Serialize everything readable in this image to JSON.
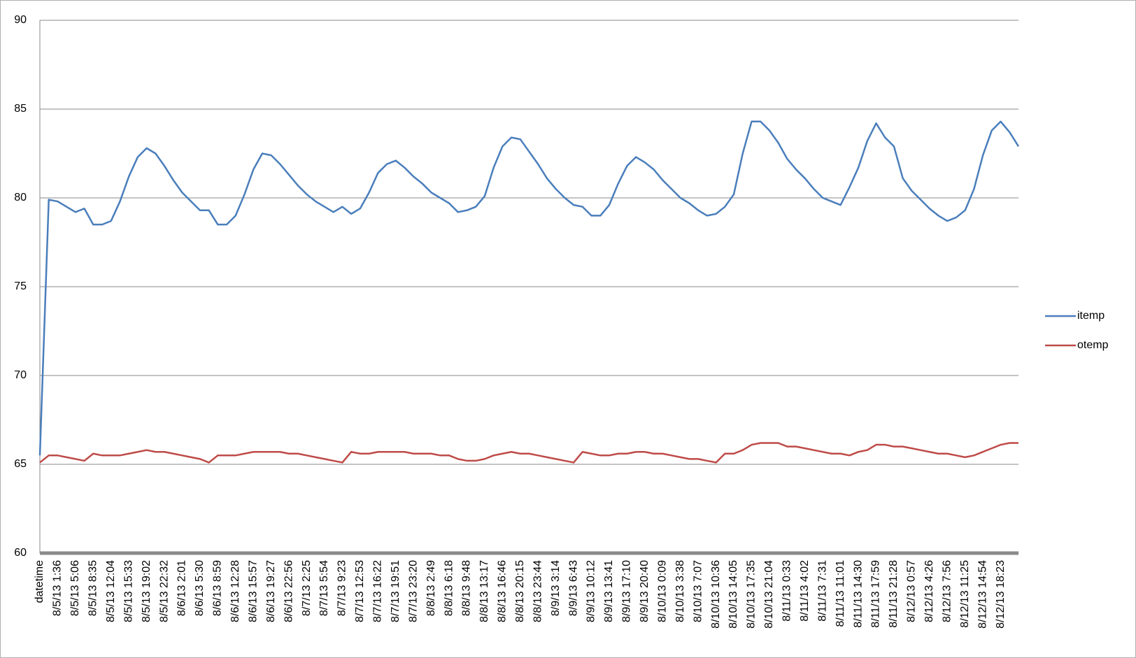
{
  "chart_data": {
    "type": "line",
    "categories": [
      "datetime",
      null,
      "8/5/13 1:36",
      null,
      "8/5/13 5:06",
      null,
      "8/5/13 8:35",
      null,
      "8/5/13 12:04",
      null,
      "8/5/13 15:33",
      null,
      "8/5/13 19:02",
      null,
      "8/5/13 22:32",
      null,
      "8/6/13 2:01",
      null,
      "8/6/13 5:30",
      null,
      "8/6/13 8:59",
      null,
      "8/6/13 12:28",
      null,
      "8/6/13 15:57",
      null,
      "8/6/13 19:27",
      null,
      "8/6/13 22:56",
      null,
      "8/7/13 2:25",
      null,
      "8/7/13 5:54",
      null,
      "8/7/13 9:23",
      null,
      "8/7/13 12:53",
      null,
      "8/7/13 16:22",
      null,
      "8/7/13 19:51",
      null,
      "8/7/13 23:20",
      null,
      "8/8/13 2:49",
      null,
      "8/8/13 6:18",
      null,
      "8/8/13 9:48",
      null,
      "8/8/13 13:17",
      null,
      "8/8/13 16:46",
      null,
      "8/8/13 20:15",
      null,
      "8/8/13 23:44",
      null,
      "8/9/13 3:14",
      null,
      "8/9/13 6:43",
      null,
      "8/9/13 10:12",
      null,
      "8/9/13 13:41",
      null,
      "8/9/13 17:10",
      null,
      "8/9/13 20:40",
      null,
      "8/10/13 0:09",
      null,
      "8/10/13 3:38",
      null,
      "8/10/13 7:07",
      null,
      "8/10/13 10:36",
      null,
      "8/10/13 14:05",
      null,
      "8/10/13 17:35",
      null,
      "8/10/13 21:04",
      null,
      "8/11/13 0:33",
      null,
      "8/11/13 4:02",
      null,
      "8/11/13 7:31",
      null,
      "8/11/13 11:01",
      null,
      "8/11/13 14:30",
      null,
      "8/11/13 17:59",
      null,
      "8/11/13 21:28",
      null,
      "8/12/13 0:57",
      null,
      "8/12/13 4:26",
      null,
      "8/12/13 7:56",
      null,
      "8/12/13 11:25",
      null,
      "8/12/13 14:54",
      null,
      "8/12/13 18:23",
      null,
      null
    ],
    "series": [
      {
        "name": "itemp",
        "color": "#4a7ebb",
        "values": [
          65.5,
          79.9,
          79.8,
          79.5,
          79.2,
          79.4,
          78.5,
          78.5,
          78.7,
          79.8,
          81.2,
          82.3,
          82.8,
          82.5,
          81.8,
          81.0,
          80.3,
          79.8,
          79.3,
          79.3,
          78.5,
          78.5,
          79.0,
          80.2,
          81.6,
          82.5,
          82.4,
          81.9,
          81.3,
          80.7,
          80.2,
          79.8,
          79.5,
          79.2,
          79.5,
          79.1,
          79.4,
          80.3,
          81.4,
          81.9,
          82.1,
          81.7,
          81.2,
          80.8,
          80.3,
          80.0,
          79.7,
          79.2,
          79.3,
          79.5,
          80.1,
          81.7,
          82.9,
          83.4,
          83.3,
          82.6,
          81.9,
          81.1,
          80.5,
          80.0,
          79.6,
          79.5,
          79.0,
          79.0,
          79.6,
          80.8,
          81.8,
          82.3,
          82.0,
          81.6,
          81.0,
          80.5,
          80.0,
          79.7,
          79.3,
          79.0,
          79.1,
          79.5,
          80.2,
          82.5,
          84.3,
          84.3,
          83.8,
          83.1,
          82.2,
          81.6,
          81.1,
          80.5,
          80.0,
          79.8,
          79.6,
          80.6,
          81.7,
          83.2,
          84.2,
          83.4,
          82.9,
          81.1,
          80.4,
          79.9,
          79.4,
          79.0,
          78.7,
          78.9,
          79.3,
          80.5,
          82.4,
          83.8,
          84.3,
          83.7,
          82.9
        ]
      },
      {
        "name": "otemp",
        "color": "#be4b48",
        "values": [
          65.1,
          65.5,
          65.5,
          65.4,
          65.3,
          65.2,
          65.6,
          65.5,
          65.5,
          65.5,
          65.6,
          65.7,
          65.8,
          65.7,
          65.7,
          65.6,
          65.5,
          65.4,
          65.3,
          65.1,
          65.5,
          65.5,
          65.5,
          65.6,
          65.7,
          65.7,
          65.7,
          65.7,
          65.6,
          65.6,
          65.5,
          65.4,
          65.3,
          65.2,
          65.1,
          65.7,
          65.6,
          65.6,
          65.7,
          65.7,
          65.7,
          65.7,
          65.6,
          65.6,
          65.6,
          65.5,
          65.5,
          65.3,
          65.2,
          65.2,
          65.3,
          65.5,
          65.6,
          65.7,
          65.6,
          65.6,
          65.5,
          65.4,
          65.3,
          65.2,
          65.1,
          65.7,
          65.6,
          65.5,
          65.5,
          65.6,
          65.6,
          65.7,
          65.7,
          65.6,
          65.6,
          65.5,
          65.4,
          65.3,
          65.3,
          65.2,
          65.1,
          65.6,
          65.6,
          65.8,
          66.1,
          66.2,
          66.2,
          66.2,
          66.0,
          66.0,
          65.9,
          65.8,
          65.7,
          65.6,
          65.6,
          65.5,
          65.7,
          65.8,
          66.1,
          66.1,
          66.0,
          66.0,
          65.9,
          65.8,
          65.7,
          65.6,
          65.6,
          65.5,
          65.4,
          65.5,
          65.7,
          65.9,
          66.1,
          66.2,
          66.2
        ]
      }
    ],
    "ylim": [
      60,
      90
    ],
    "yticks": [
      60,
      65,
      70,
      75,
      80,
      85,
      90
    ],
    "grid": true,
    "legend": "right"
  }
}
